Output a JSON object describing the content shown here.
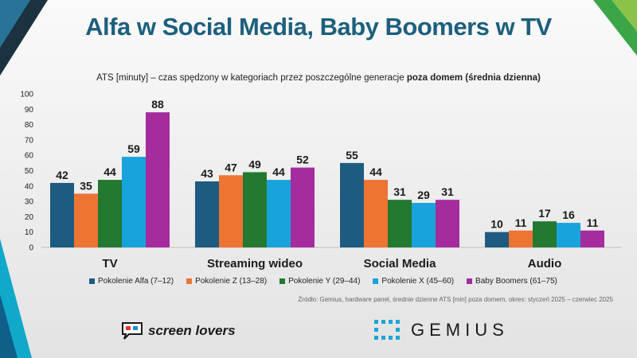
{
  "title": "Alfa w Social Media, Baby Boomers w TV",
  "subtitle": {
    "prefix": "ATS [minuty] – czas spędzony w kategoriach przez poszczególne generacje ",
    "bold": "poza domem (średnia dzienna)"
  },
  "source": "Źródło: Gemius, hardware panel, średnie dzienne ATS [min] poza domem, okres: styczeń 2025 – czerwiec 2025",
  "logos": {
    "screen_lovers": "screen lovers",
    "gemius": "GEMIUS"
  },
  "colors": {
    "title": "#1d5f7d",
    "alfa": "#1d5c80",
    "z": "#ee7433",
    "y": "#23792f",
    "x": "#19a3dc",
    "bb": "#a42c9d"
  },
  "chart_data": {
    "type": "bar",
    "title": "ATS [minuty] – czas spędzony w kategoriach przez poszczególne generacje poza domem (średnia dzienna)",
    "xlabel": "",
    "ylabel": "",
    "ylim": [
      0,
      100
    ],
    "yticks": [
      0,
      10,
      20,
      30,
      40,
      50,
      60,
      70,
      80,
      90,
      100
    ],
    "categories": [
      "TV",
      "Streaming wideo",
      "Social Media",
      "Audio"
    ],
    "series": [
      {
        "name": "Pokolenie Alfa (7–12)",
        "color": "#1d5c80",
        "values": [
          42,
          43,
          55,
          10
        ]
      },
      {
        "name": "Pokolenie Z (13–28)",
        "color": "#ee7433",
        "values": [
          35,
          47,
          44,
          11
        ]
      },
      {
        "name": "Pokolenie Y (29–44)",
        "color": "#23792f",
        "values": [
          44,
          49,
          31,
          17
        ]
      },
      {
        "name": "Pokolenie X (45–60)",
        "color": "#19a3dc",
        "values": [
          59,
          44,
          29,
          16
        ]
      },
      {
        "name": "Baby Boomers (61–75)",
        "color": "#a42c9d",
        "values": [
          88,
          52,
          31,
          11
        ]
      }
    ],
    "legend": "bottom"
  }
}
